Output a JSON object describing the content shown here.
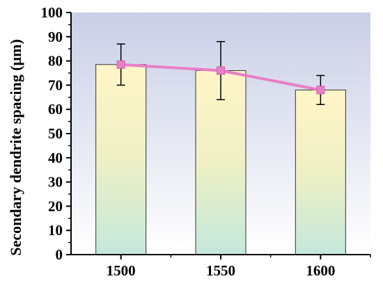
{
  "chart_data": {
    "type": "bar",
    "categories": [
      "1500",
      "1550",
      "1600"
    ],
    "values": [
      78.5,
      76.0,
      68.0
    ],
    "error_upper": [
      87,
      88,
      74
    ],
    "error_lower": [
      70,
      64,
      62
    ],
    "line_overlay": [
      78.5,
      76.0,
      68.0
    ],
    "ylabel": "Secondary dendrite spacing (μm)",
    "xlabel": "",
    "ylim": [
      0,
      100
    ],
    "yticks": [
      "0",
      "10",
      "20",
      "30",
      "40",
      "50",
      "60",
      "70",
      "80",
      "90",
      "100"
    ],
    "grid": false,
    "legend": "none",
    "colors": {
      "bar_top": "#fff4c4",
      "bar_bottom": "#c6e8dc",
      "bg_top": "#c9cfe6",
      "bg_bottom": "#ffffff",
      "line": "#e87fc4",
      "marker": "#e87fc4",
      "error": "#000000",
      "axis": "#000000"
    }
  }
}
